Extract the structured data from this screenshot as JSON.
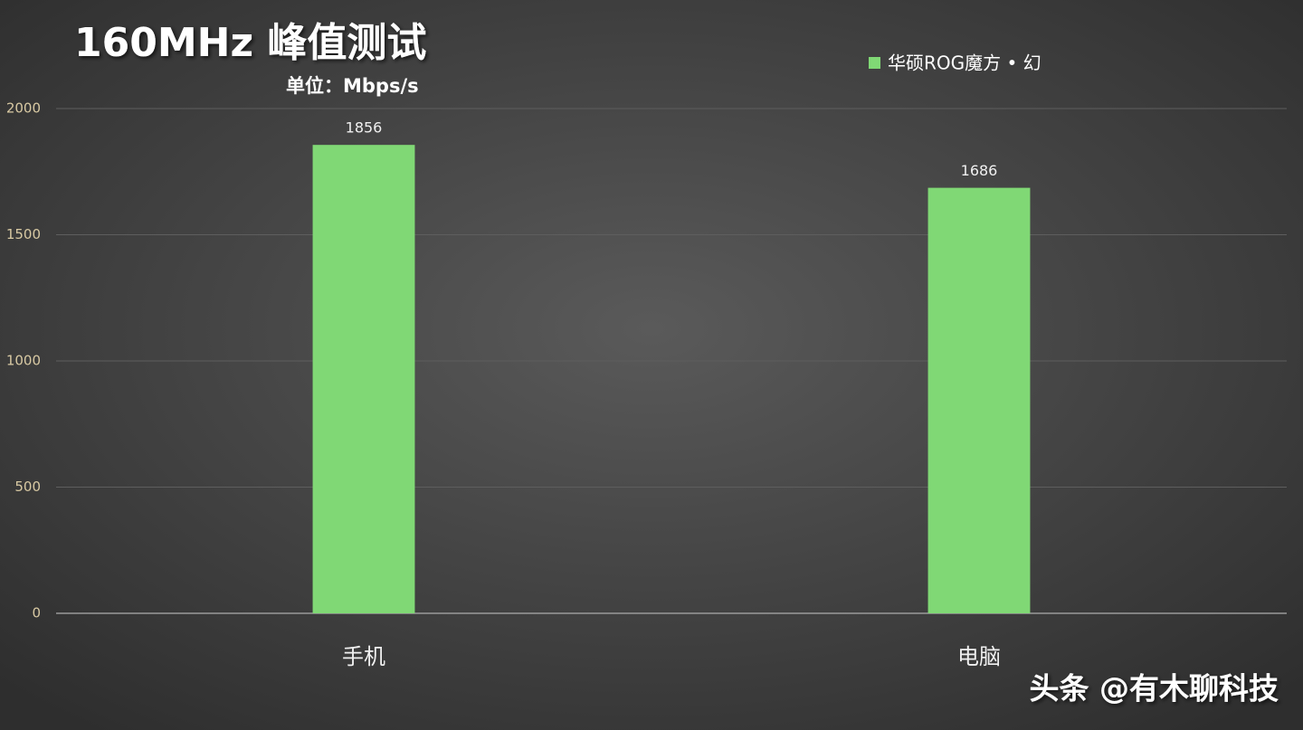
{
  "chart_data": {
    "type": "bar",
    "title": "160MHz 峰值测试",
    "subtitle": "单位：Mbps/s",
    "categories": [
      "手机",
      "电脑"
    ],
    "series": [
      {
        "name": "华硕ROG魔方 • 幻",
        "color": "#80d875",
        "values": [
          1856,
          1686
        ]
      }
    ],
    "ylim": [
      0,
      2000
    ],
    "yticks": [
      0,
      500,
      1000,
      1500,
      2000
    ],
    "grid": true,
    "legend": "top-right",
    "watermark": "头条 @有木聊科技"
  }
}
